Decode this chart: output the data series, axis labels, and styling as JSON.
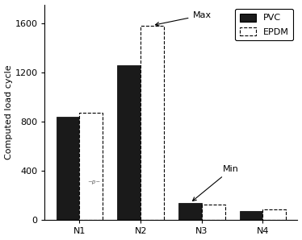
{
  "categories": [
    "N1",
    "N2",
    "N3",
    "N4"
  ],
  "pvc_values": [
    840,
    1260,
    140,
    75
  ],
  "epdm_values": [
    870,
    1580,
    130,
    90
  ],
  "pvc_color": "#1a1a1a",
  "epdm_color": "#ffffff",
  "ylabel": "Computed load cycle",
  "ylim": [
    0,
    1750
  ],
  "yticks": [
    0,
    400,
    800,
    1200,
    1600
  ],
  "bar_width": 0.38,
  "annotation_max_text": "Max",
  "annotation_min_text": "Min",
  "legend_labels": [
    "PVC",
    "EPDM"
  ],
  "background_color": "#ffffff",
  "figsize": [
    3.74,
    2.98
  ],
  "dpi": 100
}
